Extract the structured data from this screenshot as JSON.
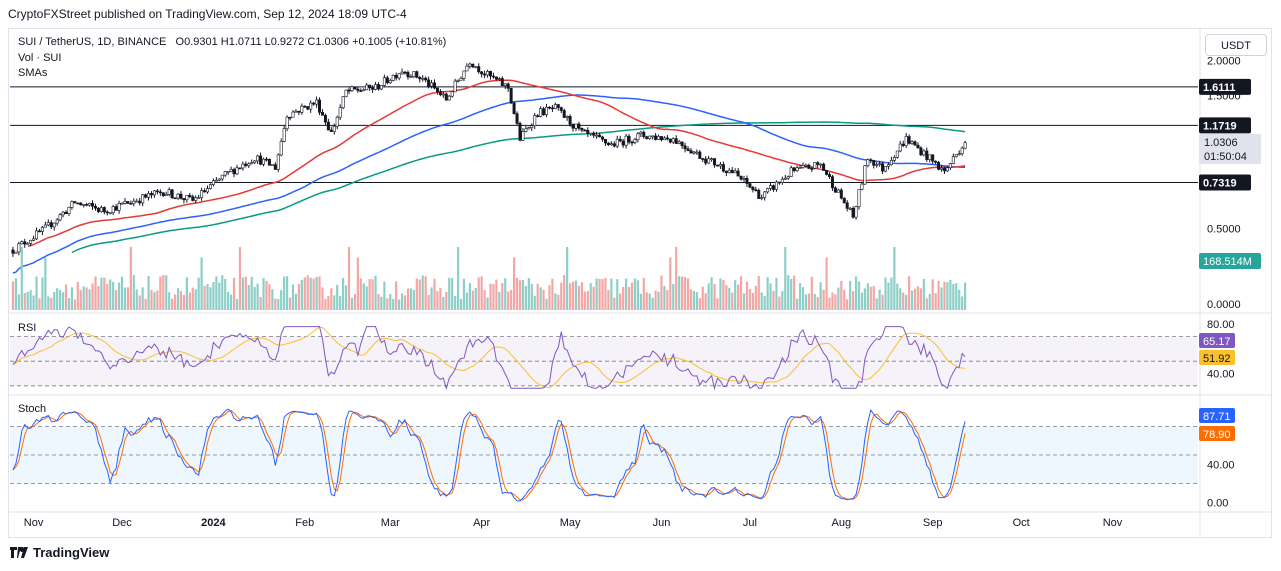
{
  "header": {
    "published": "CryptoFXStreet published on TradingView.com, Sep 12, 2024 18:09 UTC-4"
  },
  "legend": {
    "symbol": "SUI / TetherUS, 1D, BINANCE",
    "ohlc": "O0.9301  H1.0711  L0.9272  C1.0306  +0.1005 (+10.81%)",
    "vol": "Vol · SUI",
    "smas": "SMAs",
    "rsi": "RSI",
    "stoch": "Stoch"
  },
  "currency": "USDT",
  "footer": {
    "brand": "TradingView"
  },
  "colors": {
    "up": "#26a69a",
    "down": "#ef5350",
    "sma_red": "#e53935",
    "sma_blue": "#2962ff",
    "sma_green": "#089981",
    "rsi": "#7e57c2",
    "rsi_ma": "#fbc02d",
    "stoch_k": "#2962ff",
    "stoch_d": "#ff6d00"
  },
  "chart_data": [
    {
      "type": "candlestick",
      "name": "price",
      "x_labels": [
        "Nov",
        "Dec",
        "2024",
        "Feb",
        "Mar",
        "Apr",
        "May",
        "Jun",
        "Jul",
        "Aug",
        "Sep",
        "Oct",
        "Nov"
      ],
      "y_ticks": [
        "2.0000",
        "1.5000",
        "0.5000"
      ],
      "horizontal_levels": [
        {
          "label": "1.6111",
          "value": 1.6111
        },
        {
          "label": "1.1719",
          "value": 1.1719
        },
        {
          "label": "0.7319",
          "value": 0.7319
        }
      ],
      "last_price": {
        "label": "1.0306",
        "countdown": "01:50:04"
      },
      "price_path": [
        [
          "2023-10-25",
          0.42
        ],
        [
          "2023-11-05",
          0.5
        ],
        [
          "2023-11-15",
          0.62
        ],
        [
          "2023-11-25",
          0.58
        ],
        [
          "2023-12-05",
          0.63
        ],
        [
          "2023-12-15",
          0.68
        ],
        [
          "2023-12-25",
          0.63
        ],
        [
          "2024-01-05",
          0.78
        ],
        [
          "2024-01-15",
          0.9
        ],
        [
          "2024-01-22",
          0.83
        ],
        [
          "2024-01-26",
          1.28
        ],
        [
          "2024-02-05",
          1.42
        ],
        [
          "2024-02-10",
          1.1
        ],
        [
          "2024-02-15",
          1.55
        ],
        [
          "2024-02-25",
          1.6
        ],
        [
          "2024-03-05",
          1.85
        ],
        [
          "2024-03-12",
          1.72
        ],
        [
          "2024-03-20",
          1.45
        ],
        [
          "2024-03-28",
          2.0
        ],
        [
          "2024-04-02",
          1.8
        ],
        [
          "2024-04-10",
          1.6
        ],
        [
          "2024-04-14",
          1.05
        ],
        [
          "2024-04-20",
          1.3
        ],
        [
          "2024-04-26",
          1.35
        ],
        [
          "2024-05-05",
          1.1
        ],
        [
          "2024-05-15",
          1.0
        ],
        [
          "2024-05-25",
          1.08
        ],
        [
          "2024-06-05",
          1.05
        ],
        [
          "2024-06-15",
          0.9
        ],
        [
          "2024-06-25",
          0.8
        ],
        [
          "2024-07-05",
          0.65
        ],
        [
          "2024-07-15",
          0.8
        ],
        [
          "2024-07-25",
          0.85
        ],
        [
          "2024-08-05",
          0.55
        ],
        [
          "2024-08-10",
          0.9
        ],
        [
          "2024-08-15",
          0.82
        ],
        [
          "2024-08-23",
          1.05
        ],
        [
          "2024-08-28",
          0.95
        ],
        [
          "2024-09-05",
          0.8
        ],
        [
          "2024-09-12",
          1.03
        ]
      ]
    },
    {
      "type": "bar",
      "name": "volume",
      "y_ticks": [
        "0.0000"
      ],
      "last_volume": "168.514M"
    },
    {
      "type": "line",
      "name": "RSI",
      "y_ticks": [
        "80.00",
        "40.00"
      ],
      "bands": [
        70,
        50,
        30
      ],
      "last_values": {
        "rsi": "65.17",
        "ma": "51.92"
      }
    },
    {
      "type": "line",
      "name": "Stoch",
      "y_ticks": [
        "40.00",
        "0.00"
      ],
      "bands": [
        80,
        50,
        20
      ],
      "last_values": {
        "k": "87.71",
        "d": "78.90"
      }
    }
  ]
}
